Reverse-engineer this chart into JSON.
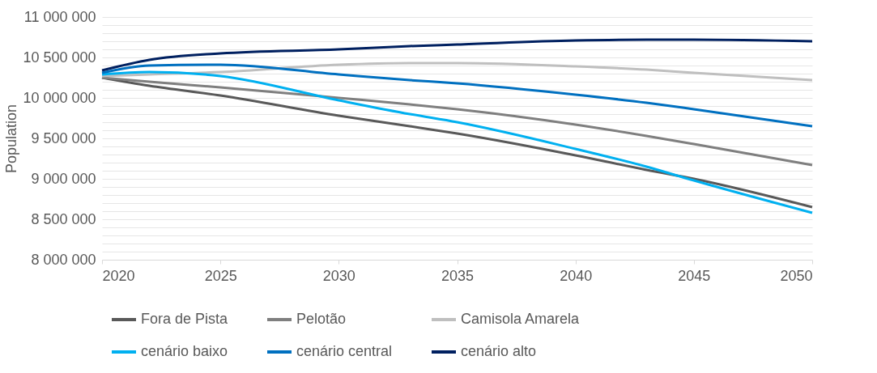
{
  "chart_data": {
    "type": "line",
    "ylabel": "Population",
    "x": [
      2020,
      2022,
      2025,
      2030,
      2033,
      2035,
      2040,
      2043,
      2045,
      2050
    ],
    "series": [
      {
        "name": "Fora de Pista",
        "color": "#595959",
        "values": [
          10250000,
          10150000,
          10030000,
          9780000,
          9650000,
          9560000,
          9290000,
          9110000,
          9000000,
          8650000
        ]
      },
      {
        "name": "Pelotão",
        "color": "#7f7f7f",
        "values": [
          10250000,
          10200000,
          10130000,
          10000000,
          9920000,
          9860000,
          9670000,
          9530000,
          9430000,
          9170000
        ]
      },
      {
        "name": "Camisola Amarela",
        "color": "#bfbfbf",
        "values": [
          10270000,
          10290000,
          10320000,
          10410000,
          10430000,
          10430000,
          10390000,
          10350000,
          10310000,
          10220000
        ]
      },
      {
        "name": "cenário baixo",
        "color": "#00b0f0",
        "values": [
          10290000,
          10320000,
          10270000,
          9970000,
          9800000,
          9700000,
          9370000,
          9150000,
          8980000,
          8580000
        ]
      },
      {
        "name": "cenário central",
        "color": "#0070c0",
        "values": [
          10310000,
          10400000,
          10410000,
          10290000,
          10220000,
          10180000,
          10040000,
          9940000,
          9860000,
          9650000
        ]
      },
      {
        "name": "cenário alto",
        "color": "#002060",
        "values": [
          10340000,
          10470000,
          10550000,
          10600000,
          10640000,
          10660000,
          10710000,
          10720000,
          10720000,
          10700000
        ]
      }
    ],
    "xlim": [
      2020,
      2050
    ],
    "xticks": [
      2020,
      2025,
      2030,
      2035,
      2040,
      2045,
      2050
    ],
    "ylim": [
      8000000,
      11000000
    ],
    "yticks": [
      {
        "value": 8000000,
        "label": "8 000 000"
      },
      {
        "value": 8100000,
        "label": null
      },
      {
        "value": 8200000,
        "label": null
      },
      {
        "value": 8300000,
        "label": null
      },
      {
        "value": 8400000,
        "label": null
      },
      {
        "value": 8500000,
        "label": "8 500 000"
      },
      {
        "value": 8600000,
        "label": null
      },
      {
        "value": 8700000,
        "label": null
      },
      {
        "value": 8800000,
        "label": null
      },
      {
        "value": 8900000,
        "label": null
      },
      {
        "value": 9000000,
        "label": "9 000 000"
      },
      {
        "value": 9100000,
        "label": null
      },
      {
        "value": 9200000,
        "label": null
      },
      {
        "value": 9300000,
        "label": null
      },
      {
        "value": 9400000,
        "label": null
      },
      {
        "value": 9500000,
        "label": "9 500 000"
      },
      {
        "value": 9600000,
        "label": null
      },
      {
        "value": 9700000,
        "label": null
      },
      {
        "value": 9800000,
        "label": null
      },
      {
        "value": 9900000,
        "label": null
      },
      {
        "value": 10000000,
        "label": "10 000 000"
      },
      {
        "value": 10100000,
        "label": null
      },
      {
        "value": 10200000,
        "label": null
      },
      {
        "value": 10300000,
        "label": null
      },
      {
        "value": 10400000,
        "label": null
      },
      {
        "value": 10500000,
        "label": "10 500 000"
      },
      {
        "value": 10600000,
        "label": null
      },
      {
        "value": 10700000,
        "label": null
      },
      {
        "value": 10800000,
        "label": null
      },
      {
        "value": 10900000,
        "label": null
      },
      {
        "value": 11000000,
        "label": "11 000 000"
      }
    ],
    "grid": "y",
    "legend": "bottom",
    "line_style": "solid",
    "marker": "none"
  }
}
